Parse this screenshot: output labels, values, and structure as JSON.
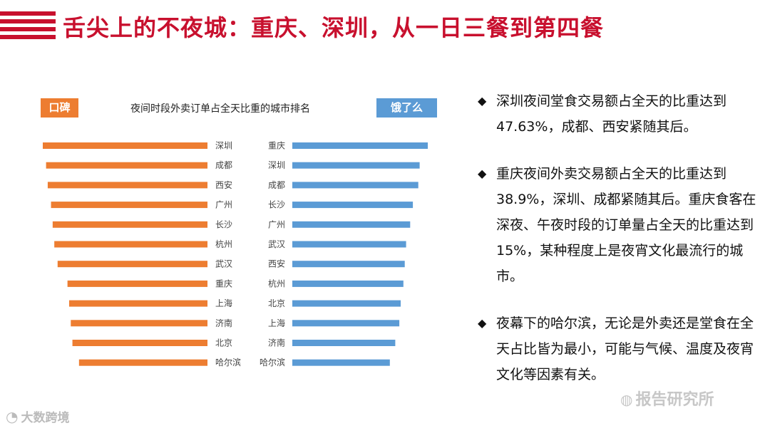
{
  "header": {
    "title": "舌尖上的不夜城：重庆、深圳，从一日三餐到第四餐"
  },
  "chart_data": {
    "type": "bar",
    "title": "夜间时段外卖订单占全天比重的城市排名",
    "left_panel": {
      "label": "口碑",
      "color": "#ed7d31",
      "categories": [
        "深圳",
        "成都",
        "西安",
        "广州",
        "长沙",
        "杭州",
        "武汉",
        "重庆",
        "上海",
        "济南",
        "北京",
        "哈尔滨"
      ],
      "values": [
        100,
        98,
        97,
        95,
        94,
        93,
        91,
        85,
        84,
        83,
        82,
        78
      ]
    },
    "right_panel": {
      "label": "饿了么",
      "color": "#5b9bd5",
      "categories": [
        "重庆",
        "深圳",
        "成都",
        "长沙",
        "广州",
        "武汉",
        "西安",
        "杭州",
        "北京",
        "上海",
        "济南",
        "哈尔滨"
      ],
      "values": [
        100,
        94,
        93,
        89,
        87,
        84,
        83,
        82,
        80,
        79,
        76,
        72
      ]
    }
  },
  "bullets": [
    "深圳夜间堂食交易额占全天的比重达到47.63%，成都、西安紧随其后。",
    "重庆夜间外卖交易额占全天的比重达到38.9%，深圳、成都紧随其后。重庆食客在深夜、午夜时段的订单量占全天的比重达到15%，某种程度上是夜宵文化最流行的城市。",
    "夜幕下的哈尔滨，无论是外卖还是堂食在全天占比皆为最小，可能与气候、温度及夜宵文化等因素有关。"
  ],
  "bullet_marker": "◆",
  "watermarks": {
    "left": "大数跨境",
    "right": "报告研究所",
    "left_icon": "logo-icon",
    "right_icon": "wechat-icon"
  }
}
